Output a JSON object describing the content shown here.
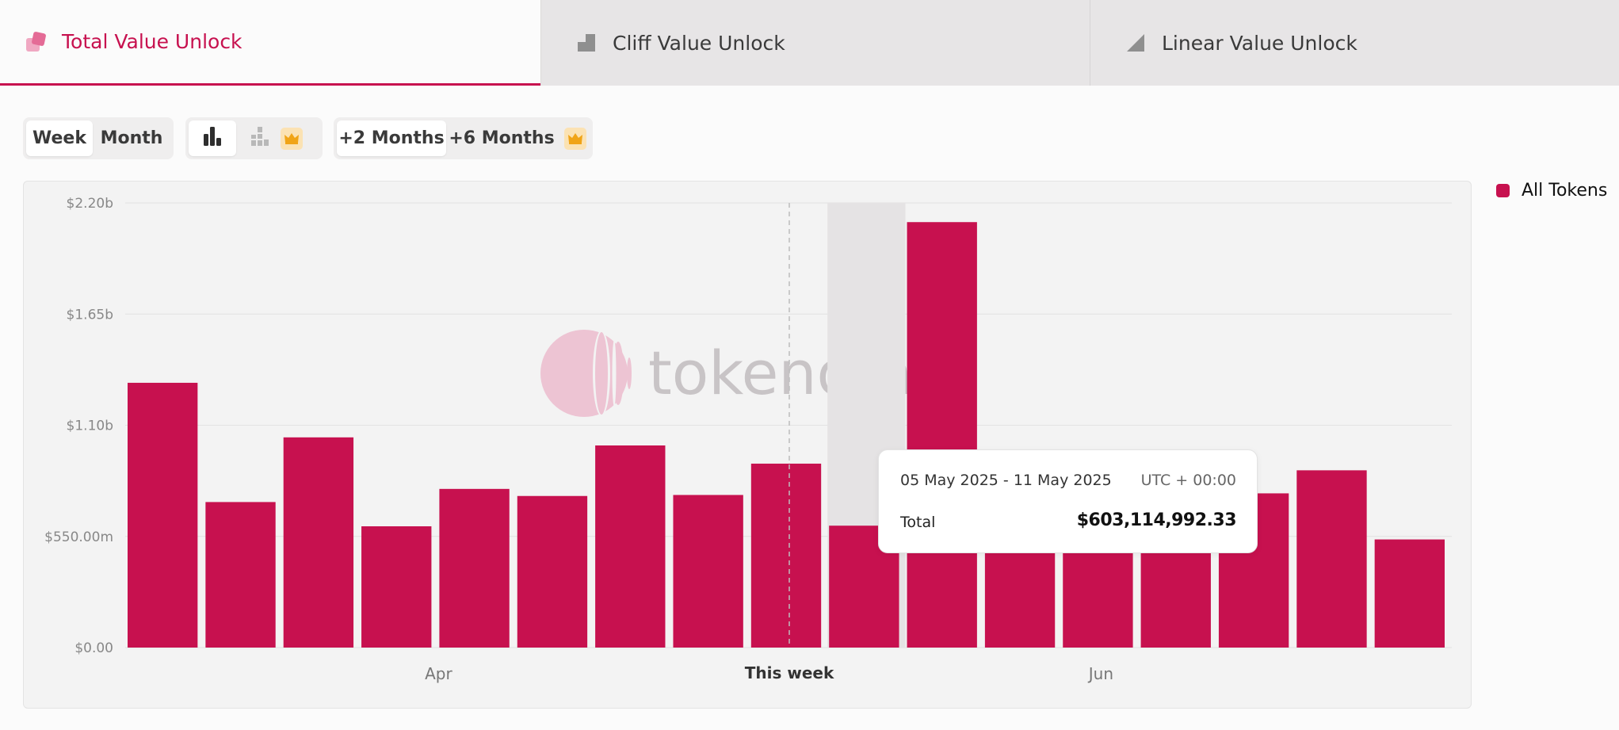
{
  "tabs": [
    {
      "label": "Total Value Unlock",
      "icon": "total-unlock-icon",
      "active": true
    },
    {
      "label": "Cliff Value Unlock",
      "icon": "cliff-step-icon",
      "active": false
    },
    {
      "label": "Linear Value Unlock",
      "icon": "linear-ramp-icon",
      "active": false
    }
  ],
  "controls": {
    "period": {
      "options": [
        "Week",
        "Month"
      ],
      "selected": "Week"
    },
    "view": {
      "selected": "bar-chart",
      "options": [
        "bar-chart-icon",
        "stacked-bar-icon"
      ],
      "premium_icon": "crown-icon"
    },
    "range": {
      "options": [
        "+2 Months",
        "+6 Months"
      ],
      "selected": "+2 Months",
      "premium_icon": "crown-icon"
    }
  },
  "watermark": "tokenomi",
  "legend": {
    "label": "All Tokens",
    "color": "#c7114f"
  },
  "tooltip": {
    "range": "05 May 2025 - 11 May 2025",
    "timezone": "UTC + 00:00",
    "label": "Total",
    "value": "$603,114,992.33"
  },
  "colors": {
    "accent": "#c7114f",
    "highlight_band": "#e5e3e4"
  },
  "chart_data": {
    "type": "bar",
    "series": [
      {
        "name": "All Tokens",
        "values": [
          1310000000,
          720000000,
          1040000000,
          600000000,
          785000000,
          750000000,
          1000000000,
          755000000,
          910000000,
          603114992.33,
          2105000000,
          640000000,
          640000000,
          640000000,
          763000000,
          877000000,
          535000000
        ]
      }
    ],
    "ylim": [
      0,
      2200000000
    ],
    "y_ticks": [
      "$0.00",
      "$550.00m",
      "$1.10b",
      "$1.65b",
      "$2.20b"
    ],
    "x_tick_labels": [
      {
        "label": "Apr",
        "index": 4,
        "bold": false
      },
      {
        "label": "This week",
        "index": 8.5,
        "bold": true
      },
      {
        "label": "Jun",
        "index": 12.5,
        "bold": false
      }
    ],
    "current_week_marker_index": 8.5,
    "highlighted_index": 9,
    "grid": true
  }
}
